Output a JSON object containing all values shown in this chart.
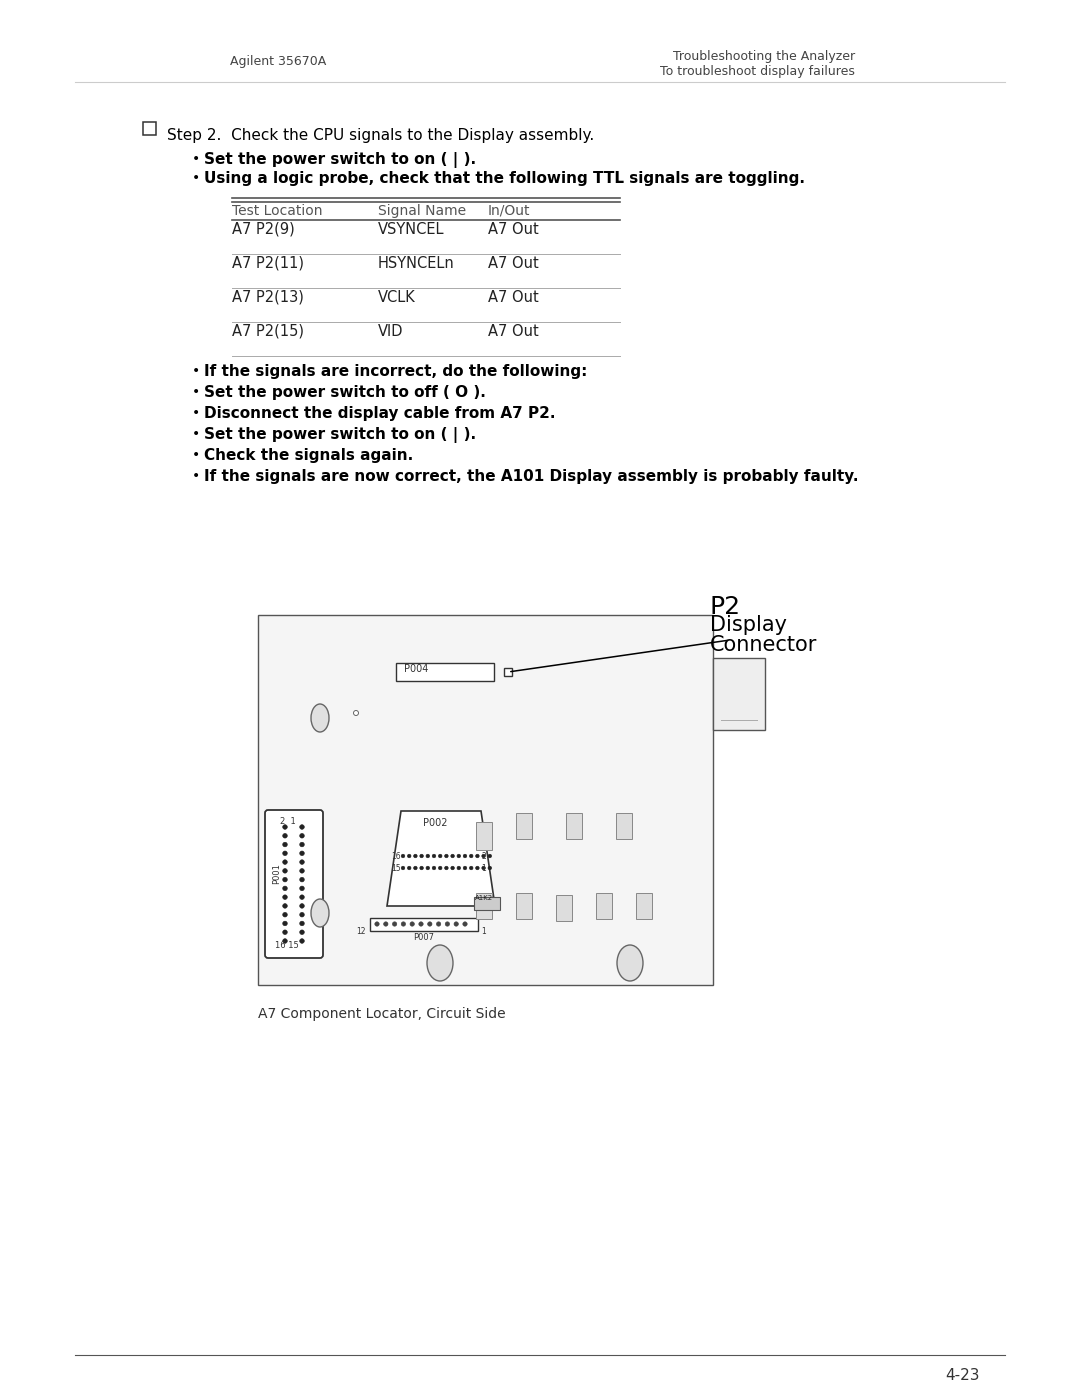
{
  "header_left": "Agilent 35670A",
  "header_right_line1": "Troubleshooting the Analyzer",
  "header_right_line2": "To troubleshoot display failures",
  "step_text": "Step 2.  Check the CPU signals to the Display assembly.",
  "bullet1": "Set the power switch to on ( | ).",
  "bullet2": "Using a logic probe, check that the following TTL signals are toggling.",
  "table_headers": [
    "Test Location",
    "Signal Name",
    "In/Out"
  ],
  "table_rows": [
    [
      "A7 P2(9)",
      "VSYNCEL",
      "A7 Out"
    ],
    [
      "A7 P2(11)",
      "HSYNCELn",
      "A7 Out"
    ],
    [
      "A7 P2(13)",
      "VCLK",
      "A7 Out"
    ],
    [
      "A7 P2(15)",
      "VID",
      "A7 Out"
    ]
  ],
  "bullet3": "If the signals are incorrect, do the following:",
  "bullet4": "Set the power switch to off ( O ).",
  "bullet5": "Disconnect the display cable from A7 P2.",
  "bullet6": "Set the power switch to on ( | ).",
  "bullet7": "Check the signals again.",
  "bullet8": "If the signals are now correct, the A101 Display assembly is probably faulty.",
  "diagram_label_p2": "P2",
  "diagram_label_display": "Display",
  "diagram_label_connector": "Connector",
  "diagram_caption": "A7 Component Locator, Circuit Side",
  "page_number": "4-23",
  "bg_color": "#ffffff",
  "text_color": "#000000",
  "line_color": "#888888",
  "table_line_color": "#555555"
}
